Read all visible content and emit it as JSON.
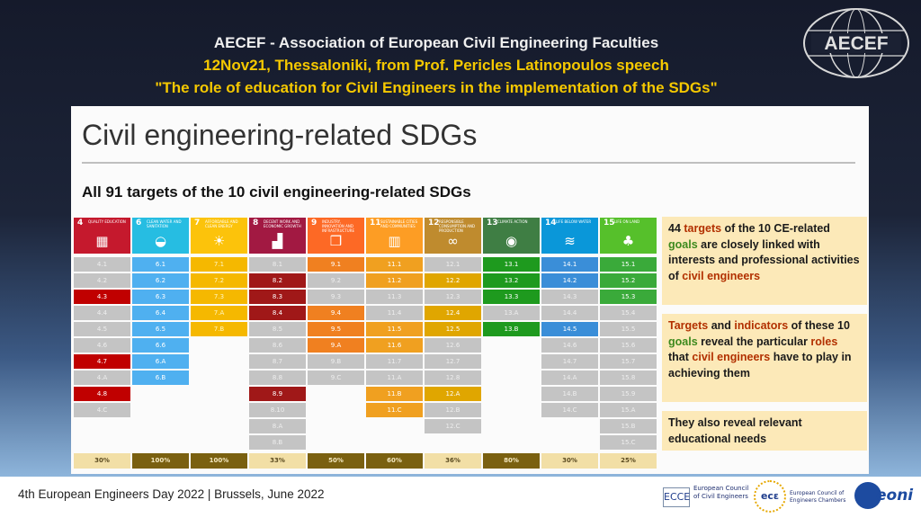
{
  "header": {
    "line1": "AECEF - Association of European Civil Engineering Faculties",
    "line2": "12Nov21, Thessaloniki, from Prof. Pericles Latinopoulos speech",
    "line3": "\"The role of education for Civil Engineers in the implementation of the SDGs\"",
    "logo_text": "AECEF"
  },
  "slide": {
    "title": "Civil engineering-related SDGs",
    "subtitle": "All 91 targets of the 10 civil engineering-related SDGs",
    "columns": [
      {
        "num": "4",
        "label": "QUALITY EDUCATION",
        "icon": "book-icon",
        "glyph": "▦",
        "color": "#c5192d",
        "percent": "30%",
        "targets": [
          {
            "t": "4.1",
            "h": false
          },
          {
            "t": "4.2",
            "h": false
          },
          {
            "t": "4.3",
            "h": true
          },
          {
            "t": "4.4",
            "h": false
          },
          {
            "t": "4.5",
            "h": false
          },
          {
            "t": "4.6",
            "h": false
          },
          {
            "t": "4.7",
            "h": true
          },
          {
            "t": "4.A",
            "h": false
          },
          {
            "t": "4.8",
            "h": true
          },
          {
            "t": "4.C",
            "h": false
          }
        ]
      },
      {
        "num": "6",
        "label": "CLEAN WATER AND SANITATION",
        "icon": "water-drop-icon",
        "glyph": "◒",
        "color": "#26bde2",
        "percent": "100%",
        "targets": [
          {
            "t": "6.1",
            "h": true
          },
          {
            "t": "6.2",
            "h": true
          },
          {
            "t": "6.3",
            "h": true
          },
          {
            "t": "6.4",
            "h": true
          },
          {
            "t": "6.5",
            "h": true
          },
          {
            "t": "6.6",
            "h": true
          },
          {
            "t": "6.A",
            "h": true
          },
          {
            "t": "6.B",
            "h": true
          }
        ]
      },
      {
        "num": "7",
        "label": "AFFORDABLE AND CLEAN ENERGY",
        "icon": "sun-icon",
        "glyph": "☀",
        "color": "#fcc30b",
        "percent": "100%",
        "targets": [
          {
            "t": "7.1",
            "h": true
          },
          {
            "t": "7.2",
            "h": true
          },
          {
            "t": "7.3",
            "h": true
          },
          {
            "t": "7.A",
            "h": true
          },
          {
            "t": "7.B",
            "h": true
          }
        ]
      },
      {
        "num": "8",
        "label": "DECENT WORK AND ECONOMIC GROWTH",
        "icon": "growth-chart-icon",
        "glyph": "▟",
        "color": "#a21942",
        "percent": "33%",
        "targets": [
          {
            "t": "8.1",
            "h": false
          },
          {
            "t": "8.2",
            "h": true
          },
          {
            "t": "8.3",
            "h": true
          },
          {
            "t": "8.4",
            "h": true
          },
          {
            "t": "8.5",
            "h": false
          },
          {
            "t": "8.6",
            "h": false
          },
          {
            "t": "8.7",
            "h": false
          },
          {
            "t": "8.8",
            "h": false
          },
          {
            "t": "8.9",
            "h": true
          },
          {
            "t": "8.10",
            "h": false
          },
          {
            "t": "8.A",
            "h": false
          },
          {
            "t": "8.B",
            "h": false
          }
        ]
      },
      {
        "num": "9",
        "label": "INDUSTRY, INNOVATION AND INFRASTRUCTURE",
        "icon": "cubes-icon",
        "glyph": "❒",
        "color": "#fd6925",
        "percent": "50%",
        "targets": [
          {
            "t": "9.1",
            "h": true
          },
          {
            "t": "9.2",
            "h": false
          },
          {
            "t": "9.3",
            "h": false
          },
          {
            "t": "9.4",
            "h": true
          },
          {
            "t": "9.5",
            "h": true
          },
          {
            "t": "9.A",
            "h": true
          },
          {
            "t": "9.B",
            "h": false
          },
          {
            "t": "9.C",
            "h": false
          }
        ]
      },
      {
        "num": "11",
        "label": "SUSTAINABLE CITIES AND COMMUNITIES",
        "icon": "city-icon",
        "glyph": "▥",
        "color": "#fd9d24",
        "percent": "60%",
        "targets": [
          {
            "t": "11.1",
            "h": true
          },
          {
            "t": "11.2",
            "h": true
          },
          {
            "t": "11.3",
            "h": false
          },
          {
            "t": "11.4",
            "h": false
          },
          {
            "t": "11.5",
            "h": true
          },
          {
            "t": "11.6",
            "h": true
          },
          {
            "t": "11.7",
            "h": false
          },
          {
            "t": "11.A",
            "h": false
          },
          {
            "t": "11.B",
            "h": true
          },
          {
            "t": "11.C",
            "h": true
          }
        ]
      },
      {
        "num": "12",
        "label": "RESPONSIBLE CONSUMPTION AND PRODUCTION",
        "icon": "infinity-icon",
        "glyph": "∞",
        "color": "#bf8b2e",
        "percent": "36%",
        "targets": [
          {
            "t": "12.1",
            "h": false
          },
          {
            "t": "12.2",
            "h": true
          },
          {
            "t": "12.3",
            "h": false
          },
          {
            "t": "12.4",
            "h": true
          },
          {
            "t": "12.5",
            "h": true
          },
          {
            "t": "12.6",
            "h": false
          },
          {
            "t": "12.7",
            "h": false
          },
          {
            "t": "12.8",
            "h": false
          },
          {
            "t": "12.A",
            "h": true
          },
          {
            "t": "12.B",
            "h": false
          },
          {
            "t": "12.C",
            "h": false
          }
        ]
      },
      {
        "num": "13",
        "label": "CLIMATE ACTION",
        "icon": "eye-globe-icon",
        "glyph": "◉",
        "color": "#3f7e44",
        "percent": "80%",
        "targets": [
          {
            "t": "13.1",
            "h": true
          },
          {
            "t": "13.2",
            "h": true
          },
          {
            "t": "13.3",
            "h": true
          },
          {
            "t": "13.A",
            "h": false
          },
          {
            "t": "13.B",
            "h": true
          }
        ]
      },
      {
        "num": "14",
        "label": "LIFE BELOW WATER",
        "icon": "fish-icon",
        "glyph": "≋",
        "color": "#0a97d9",
        "percent": "30%",
        "targets": [
          {
            "t": "14.1",
            "h": true
          },
          {
            "t": "14.2",
            "h": true
          },
          {
            "t": "14.3",
            "h": false
          },
          {
            "t": "14.4",
            "h": false
          },
          {
            "t": "14.5",
            "h": true
          },
          {
            "t": "14.6",
            "h": false
          },
          {
            "t": "14.7",
            "h": false
          },
          {
            "t": "14.A",
            "h": false
          },
          {
            "t": "14.B",
            "h": false
          },
          {
            "t": "14.C",
            "h": false
          }
        ]
      },
      {
        "num": "15",
        "label": "LIFE ON LAND",
        "icon": "tree-icon",
        "glyph": "♣",
        "color": "#56c02b",
        "percent": "25%",
        "targets": [
          {
            "t": "15.1",
            "h": true
          },
          {
            "t": "15.2",
            "h": true
          },
          {
            "t": "15.3",
            "h": true
          },
          {
            "t": "15.4",
            "h": false
          },
          {
            "t": "15.5",
            "h": false
          },
          {
            "t": "15.6",
            "h": false
          },
          {
            "t": "15.7",
            "h": false
          },
          {
            "t": "15.8",
            "h": false
          },
          {
            "t": "15.9",
            "h": false
          },
          {
            "t": "15.A",
            "h": false
          },
          {
            "t": "15.B",
            "h": false
          },
          {
            "t": "15.C",
            "h": false
          }
        ]
      }
    ],
    "highlight_colors": [
      "#c00000",
      "#4fb0f0",
      "#f5b800",
      "#a01818",
      "#f08020",
      "#f0a020",
      "#e0a600",
      "#1e9a1e",
      "#3a8ed8",
      "#3aaa3a"
    ],
    "box1": {
      "parts": [
        {
          "text": "44 ",
          "cls": ""
        },
        {
          "text": "targets",
          "cls": "hl"
        },
        {
          "text": " of the ",
          "cls": ""
        },
        {
          "text": "10",
          "cls": ""
        },
        {
          "text": " CE-related ",
          "cls": ""
        },
        {
          "text": "goals",
          "cls": "hg"
        },
        {
          "text": " are closely linked with interests and professional activities of ",
          "cls": ""
        },
        {
          "text": "civil engineers",
          "cls": "hl"
        }
      ]
    },
    "box2": {
      "parts": [
        {
          "text": "Targets",
          "cls": "hl"
        },
        {
          "text": " and ",
          "cls": ""
        },
        {
          "text": "indicators",
          "cls": "hl"
        },
        {
          "text": " of these 10 ",
          "cls": ""
        },
        {
          "text": "goals",
          "cls": "hg"
        },
        {
          "text": " reveal the particular ",
          "cls": ""
        },
        {
          "text": "roles",
          "cls": "hl"
        },
        {
          "text": " that ",
          "cls": ""
        },
        {
          "text": "civil engineers",
          "cls": "hl"
        },
        {
          "text": " have to play in achieving them",
          "cls": ""
        }
      ]
    },
    "box3": {
      "text": "They also reveal relevant educational needs"
    }
  },
  "footer": {
    "event": "4th European Engineers Day 2022   |   Brussels, June 2022",
    "ecce_text": "European Council of Civil Engineers",
    "ecce_mark": "ECCE",
    "ecec_text": "European Council of Engineers Chambers",
    "ecec_mark": "ecε",
    "eoni_text": "eoni"
  }
}
